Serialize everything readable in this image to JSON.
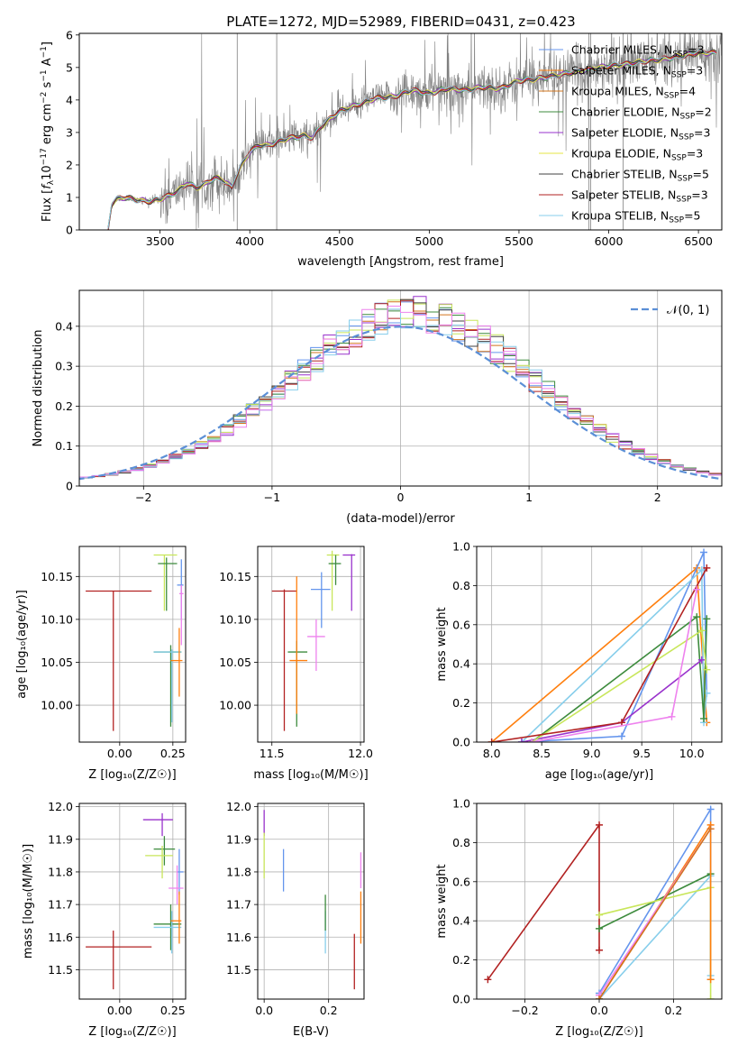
{
  "figure": {
    "title": "PLATE=1272, MJD=52989, FIBERID=0431, z=0.423"
  },
  "chart_data": [
    {
      "id": "spectrum",
      "type": "line",
      "title": "PLATE=1272, MJD=52989, FIBERID=0431, z=0.423",
      "xlabel": "wavelength [Angstrom, rest frame]",
      "ylabel_parts": [
        "Flux [",
        "f",
        "λ",
        "10",
        "−17",
        " erg cm",
        "−2",
        " s",
        "−1",
        " A",
        "−1",
        "]"
      ],
      "xlim": [
        3050,
        6630
      ],
      "ylim": [
        0,
        6.05
      ],
      "xticks": [
        3500,
        4000,
        4500,
        5000,
        5500,
        6000,
        6500
      ],
      "yticks": [
        0,
        1,
        2,
        3,
        4,
        5,
        6
      ],
      "grid": false,
      "legend_position": "top-right",
      "model_anchor": {
        "x": [
          3210,
          3230,
          3260,
          3300,
          3350,
          3400,
          3450,
          3500,
          3550,
          3600,
          3650,
          3700,
          3750,
          3800,
          3850,
          3900,
          3920,
          3950,
          4000,
          4050,
          4100,
          4200,
          4300,
          4350,
          4400,
          4500,
          4600,
          4700,
          4800,
          4900,
          5000,
          5100,
          5200,
          5300,
          5400,
          5500,
          5600,
          5700,
          5800,
          5900,
          6000,
          6100,
          6200,
          6300,
          6400,
          6500
        ],
        "y": [
          0,
          0.8,
          0.95,
          1.0,
          0.95,
          0.9,
          0.88,
          0.95,
          1.05,
          1.2,
          1.45,
          1.3,
          1.4,
          1.6,
          1.55,
          1.3,
          1.6,
          1.95,
          2.4,
          2.6,
          2.6,
          2.8,
          2.9,
          2.85,
          3.2,
          3.65,
          3.85,
          4.05,
          4.1,
          4.3,
          4.2,
          4.35,
          4.3,
          4.4,
          4.35,
          4.6,
          4.65,
          4.75,
          4.85,
          4.95,
          5.05,
          5.1,
          5.2,
          5.25,
          5.35,
          5.45
        ]
      },
      "series": [
        {
          "name": "Chabrier MILES",
          "nssp": "3",
          "color": "#6495ed"
        },
        {
          "name": "Salpeter MILES",
          "nssp": "3",
          "color": "#ff7f0e"
        },
        {
          "name": "Kroupa MILES",
          "nssp": "4",
          "color": "#d2741d"
        },
        {
          "name": "Chabrier ELODIE",
          "nssp": "2",
          "color": "#3d8b3d"
        },
        {
          "name": "Salpeter ELODIE",
          "nssp": "3",
          "color": "#9932cc"
        },
        {
          "name": "Kroupa ELODIE",
          "nssp": "3",
          "color": "#e6e645"
        },
        {
          "name": "Chabrier STELIB",
          "nssp": "5",
          "color": "#404040"
        },
        {
          "name": "Salpeter STELIB",
          "nssp": "3",
          "color": "#b22222"
        },
        {
          "name": "Kroupa STELIB",
          "nssp": "5",
          "color": "#87ceeb"
        }
      ],
      "data_color": "#808080"
    },
    {
      "id": "residuals",
      "type": "line",
      "xlabel": "(data-model)/error",
      "ylabel": "Normed distribution",
      "xlim": [
        -2.5,
        2.5
      ],
      "ylim": [
        0,
        0.49
      ],
      "xticks": [
        -2,
        -1,
        0,
        1,
        2
      ],
      "yticks": [
        0.0,
        0.1,
        0.2,
        0.3,
        0.4
      ],
      "grid": true,
      "legend_position": "top-right",
      "legend_label": "𝒩(0, 1)",
      "reference_curve": {
        "mu": 0,
        "sigma": 1,
        "color": "#5b8fd6"
      },
      "bin_width": 0.1,
      "histogram_colors": [
        "#6495ed",
        "#d2741d",
        "#3d8b3d",
        "#9932cc",
        "#c8e65a",
        "#404040",
        "#b22222",
        "#87ceeb",
        "#ee82ee"
      ]
    },
    {
      "id": "age-vs-Z",
      "type": "scatter",
      "xlabel": "Z [log₁₀(Z/Z☉)]",
      "ylabel": "age  [log₁₀(age/yr)]",
      "xlim": [
        -0.19,
        0.31
      ],
      "ylim": [
        9.957,
        10.185
      ],
      "xticks": [
        0.0,
        0.25
      ],
      "xtick_labels": [
        "0.00",
        "0.25"
      ],
      "yticks": [
        10.0,
        10.05,
        10.1,
        10.15
      ],
      "ytick_labels": [
        "10.00",
        "10.05",
        "10.10",
        "10.15"
      ],
      "grid": true,
      "points": [
        {
          "x": -0.03,
          "y": 10.133,
          "xlo": -0.16,
          "xhi": 0.15,
          "ylo": 9.97,
          "yhi": 10.133,
          "color": "#b22222"
        },
        {
          "x": 0.24,
          "y": 10.062,
          "xlo": 0.16,
          "xhi": 0.29,
          "ylo": 9.975,
          "yhi": 10.07,
          "color": "#3d8b3d"
        },
        {
          "x": 0.245,
          "y": 10.062,
          "xlo": 0.16,
          "xhi": 0.29,
          "ylo": 9.98,
          "yhi": 10.065,
          "color": "#87ceeb"
        },
        {
          "x": 0.21,
          "y": 10.175,
          "xlo": 0.16,
          "xhi": 0.27,
          "ylo": 10.11,
          "yhi": 10.175,
          "color": "#c8e65a"
        },
        {
          "x": 0.22,
          "y": 10.165,
          "xlo": 0.18,
          "xhi": 0.27,
          "ylo": 10.11,
          "yhi": 10.172,
          "color": "#3d8b3d"
        },
        {
          "x": 0.29,
          "y": 10.14,
          "xlo": 0.27,
          "xhi": 0.3,
          "ylo": 10.1,
          "yhi": 10.17,
          "color": "#6495ed"
        },
        {
          "x": 0.28,
          "y": 10.052,
          "xlo": 0.24,
          "xhi": 0.295,
          "ylo": 10.01,
          "yhi": 10.09,
          "color": "#ff7f0e"
        },
        {
          "x": 0.29,
          "y": 10.13,
          "xlo": 0.28,
          "xhi": 0.3,
          "ylo": 10.07,
          "yhi": 10.14,
          "color": "#ee82ee"
        }
      ]
    },
    {
      "id": "age-vs-mass",
      "type": "scatter",
      "xlabel": "mass [log₁₀(M/M☉)]",
      "xlim": [
        11.42,
        12.02
      ],
      "ylim": [
        9.957,
        10.185
      ],
      "xticks": [
        11.5,
        12.0
      ],
      "xtick_labels": [
        "11.5",
        "12.0"
      ],
      "yticks": [
        10.0,
        10.05,
        10.1,
        10.15
      ],
      "ytick_labels": [
        "10.00",
        "10.05",
        "10.10",
        "10.15"
      ],
      "grid": true,
      "points": [
        {
          "x": 11.57,
          "y": 10.133,
          "xlo": 11.5,
          "xhi": 11.64,
          "ylo": 9.97,
          "yhi": 10.135,
          "color": "#b22222"
        },
        {
          "x": 11.64,
          "y": 10.062,
          "xlo": 11.59,
          "xhi": 11.7,
          "ylo": 9.975,
          "yhi": 10.075,
          "color": "#3d8b3d"
        },
        {
          "x": 11.64,
          "y": 10.052,
          "xlo": 11.6,
          "xhi": 11.7,
          "ylo": 9.99,
          "yhi": 10.15,
          "color": "#ff7f0e"
        },
        {
          "x": 11.75,
          "y": 10.08,
          "xlo": 11.7,
          "xhi": 11.8,
          "ylo": 10.04,
          "yhi": 10.1,
          "color": "#ee82ee"
        },
        {
          "x": 11.78,
          "y": 10.135,
          "xlo": 11.72,
          "xhi": 11.83,
          "ylo": 10.09,
          "yhi": 10.155,
          "color": "#6495ed"
        },
        {
          "x": 11.84,
          "y": 10.175,
          "xlo": 11.81,
          "xhi": 11.88,
          "ylo": 10.11,
          "yhi": 10.18,
          "color": "#c8e65a"
        },
        {
          "x": 11.86,
          "y": 10.165,
          "xlo": 11.82,
          "xhi": 11.89,
          "ylo": 10.14,
          "yhi": 10.175,
          "color": "#3d8b3d"
        },
        {
          "x": 11.95,
          "y": 10.175,
          "xlo": 11.9,
          "xhi": 11.97,
          "ylo": 10.11,
          "yhi": 10.176,
          "color": "#9932cc"
        }
      ]
    },
    {
      "id": "mass-weight-vs-age",
      "type": "line",
      "xlabel": "age  [log₁₀(age/yr)]",
      "ylabel": "mass weight",
      "xlim": [
        7.85,
        10.3
      ],
      "ylim": [
        0,
        1.0
      ],
      "xticks": [
        8.0,
        8.5,
        9.0,
        9.5,
        10.0
      ],
      "xtick_labels": [
        "8.0",
        "8.5",
        "9.0",
        "9.5",
        "10.0"
      ],
      "yticks": [
        0.0,
        0.2,
        0.4,
        0.6,
        0.8,
        1.0
      ],
      "ytick_labels": [
        "0.0",
        "0.2",
        "0.4",
        "0.6",
        "0.8",
        "1.0"
      ],
      "grid": true,
      "series": [
        {
          "color": "#ff7f0e",
          "x": [
            8.0,
            10.05,
            10.15
          ],
          "y": [
            0.0,
            0.89,
            0.1
          ]
        },
        {
          "color": "#6495ed",
          "x": [
            8.3,
            9.3,
            10.12,
            10.15
          ],
          "y": [
            0.0,
            0.03,
            0.97,
            0.25
          ]
        },
        {
          "color": "#87ceeb",
          "x": [
            8.3,
            10.1,
            10.12,
            10.15
          ],
          "y": [
            0.0,
            0.88,
            0.1,
            0.25
          ]
        },
        {
          "color": "#3d8b3d",
          "x": [
            8.4,
            10.05,
            10.12,
            10.15
          ],
          "y": [
            0.0,
            0.64,
            0.12,
            0.63
          ]
        },
        {
          "color": "#9932cc",
          "x": [
            8.3,
            9.3,
            10.1
          ],
          "y": [
            0.0,
            0.1,
            0.42
          ]
        },
        {
          "color": "#c8e65a",
          "x": [
            8.4,
            10.1,
            10.15
          ],
          "y": [
            0.0,
            0.57,
            0.37
          ]
        },
        {
          "color": "#b22222",
          "x": [
            8.0,
            9.3,
            10.15
          ],
          "y": [
            0.0,
            0.1,
            0.89
          ]
        },
        {
          "color": "#ee82ee",
          "x": [
            8.4,
            9.8,
            10.05
          ],
          "y": [
            0.0,
            0.13,
            0.78
          ]
        }
      ]
    },
    {
      "id": "mass-vs-Z",
      "type": "scatter",
      "xlabel": "Z [log₁₀(Z/Z☉)]",
      "ylabel": "mass [log₁₀(M/M☉)]",
      "xlim": [
        -0.19,
        0.31
      ],
      "ylim": [
        11.41,
        12.01
      ],
      "xticks": [
        0.0,
        0.25
      ],
      "xtick_labels": [
        "0.00",
        "0.25"
      ],
      "yticks": [
        11.5,
        11.6,
        11.7,
        11.8,
        11.9,
        12.0
      ],
      "ytick_labels": [
        "11.5",
        "11.6",
        "11.7",
        "11.8",
        "11.9",
        "12.0"
      ],
      "grid": true,
      "points": [
        {
          "x": -0.03,
          "y": 11.57,
          "xlo": -0.16,
          "xhi": 0.15,
          "ylo": 11.44,
          "yhi": 11.62,
          "color": "#b22222"
        },
        {
          "x": 0.24,
          "y": 11.64,
          "xlo": 0.16,
          "xhi": 0.29,
          "ylo": 11.56,
          "yhi": 11.7,
          "color": "#3d8b3d"
        },
        {
          "x": 0.245,
          "y": 11.63,
          "xlo": 0.16,
          "xhi": 0.29,
          "ylo": 11.55,
          "yhi": 11.68,
          "color": "#87ceeb"
        },
        {
          "x": 0.2,
          "y": 11.96,
          "xlo": 0.11,
          "xhi": 0.25,
          "ylo": 11.91,
          "yhi": 11.98,
          "color": "#9932cc"
        },
        {
          "x": 0.21,
          "y": 11.87,
          "xlo": 0.16,
          "xhi": 0.26,
          "ylo": 11.82,
          "yhi": 11.91,
          "color": "#3d8b3d"
        },
        {
          "x": 0.2,
          "y": 11.85,
          "xlo": 0.12,
          "xhi": 0.25,
          "ylo": 11.78,
          "yhi": 11.88,
          "color": "#c8e65a"
        },
        {
          "x": 0.28,
          "y": 11.8,
          "xlo": 0.27,
          "xhi": 0.3,
          "ylo": 11.73,
          "yhi": 11.87,
          "color": "#6495ed"
        },
        {
          "x": 0.28,
          "y": 11.65,
          "xlo": 0.24,
          "xhi": 0.29,
          "ylo": 11.58,
          "yhi": 11.74,
          "color": "#ff7f0e"
        },
        {
          "x": 0.27,
          "y": 11.75,
          "xlo": 0.23,
          "xhi": 0.3,
          "ylo": 11.7,
          "yhi": 11.82,
          "color": "#ee82ee"
        }
      ]
    },
    {
      "id": "mass-vs-EBV",
      "type": "scatter",
      "xlabel": "E(B-V)",
      "xlim": [
        -0.02,
        0.31
      ],
      "ylim": [
        11.41,
        12.01
      ],
      "xticks": [
        0.0,
        0.2
      ],
      "xtick_labels": [
        "0.0",
        "0.2"
      ],
      "yticks": [
        11.5,
        11.6,
        11.7,
        11.8,
        11.9,
        12.0
      ],
      "ytick_labels": [
        "11.5",
        "11.6",
        "11.7",
        "11.8",
        "11.9",
        "12.0"
      ],
      "grid": true,
      "points": [
        {
          "x": 0.0,
          "y": 11.96,
          "xlo": 0.0,
          "xhi": 0.0,
          "ylo": 11.91,
          "yhi": 11.99,
          "color": "#9932cc"
        },
        {
          "x": 0.0,
          "y": 11.85,
          "xlo": 0.0,
          "xhi": 0.0,
          "ylo": 11.78,
          "yhi": 11.92,
          "color": "#c8e65a"
        },
        {
          "x": 0.06,
          "y": 11.8,
          "xlo": 0.06,
          "xhi": 0.06,
          "ylo": 11.74,
          "yhi": 11.87,
          "color": "#6495ed"
        },
        {
          "x": 0.19,
          "y": 11.64,
          "xlo": 0.19,
          "xhi": 0.19,
          "ylo": 11.55,
          "yhi": 11.68,
          "color": "#87ceeb"
        },
        {
          "x": 0.19,
          "y": 11.69,
          "xlo": 0.19,
          "xhi": 0.19,
          "ylo": 11.62,
          "yhi": 11.73,
          "color": "#3d8b3d"
        },
        {
          "x": 0.28,
          "y": 11.57,
          "xlo": 0.28,
          "xhi": 0.28,
          "ylo": 11.44,
          "yhi": 11.61,
          "color": "#b22222"
        },
        {
          "x": 0.3,
          "y": 11.65,
          "xlo": 0.3,
          "xhi": 0.3,
          "ylo": 11.58,
          "yhi": 11.74,
          "color": "#ff7f0e"
        },
        {
          "x": 0.3,
          "y": 11.8,
          "xlo": 0.3,
          "xhi": 0.3,
          "ylo": 11.75,
          "yhi": 11.86,
          "color": "#ee82ee"
        }
      ]
    },
    {
      "id": "mass-weight-vs-Z",
      "type": "line",
      "xlabel": "Z [log₁₀(Z/Z☉)]",
      "ylabel": "mass weight",
      "xlim": [
        -0.33,
        0.33
      ],
      "ylim": [
        0,
        1.0
      ],
      "xticks": [
        -0.2,
        0.0,
        0.2
      ],
      "xtick_labels": [
        "−0.2",
        "0.0",
        "0.2"
      ],
      "yticks": [
        0.0,
        0.2,
        0.4,
        0.6,
        0.8,
        1.0
      ],
      "ytick_labels": [
        "0.0",
        "0.2",
        "0.4",
        "0.6",
        "0.8",
        "1.0"
      ],
      "grid": true,
      "series": [
        {
          "color": "#b22222",
          "x": [
            -0.3,
            0.0,
            0.0
          ],
          "y": [
            0.1,
            0.89,
            0.25
          ]
        },
        {
          "color": "#6495ed",
          "x": [
            0.0,
            0.3,
            0.3
          ],
          "y": [
            0.03,
            0.97,
            0.1
          ]
        },
        {
          "color": "#87ceeb",
          "x": [
            0.0,
            0.3,
            0.3
          ],
          "y": [
            0.0,
            0.63,
            0.12
          ]
        },
        {
          "color": "#3d8b3d",
          "x": [
            0.0,
            0.3
          ],
          "y": [
            0.36,
            0.64
          ]
        },
        {
          "color": "#c8e65a",
          "x": [
            0.0,
            0.3,
            0.3
          ],
          "y": [
            0.43,
            0.57,
            0.0
          ]
        },
        {
          "color": "#ff7f0e",
          "x": [
            0.0,
            0.3,
            0.3
          ],
          "y": [
            0.0,
            0.89,
            0.1
          ]
        },
        {
          "color": "#ee82ee",
          "x": [
            0.0,
            0.3
          ],
          "y": [
            0.02,
            0.87
          ]
        },
        {
          "color": "#d2741d",
          "x": [
            0.0,
            0.3
          ],
          "y": [
            0.0,
            0.87
          ]
        }
      ]
    }
  ]
}
